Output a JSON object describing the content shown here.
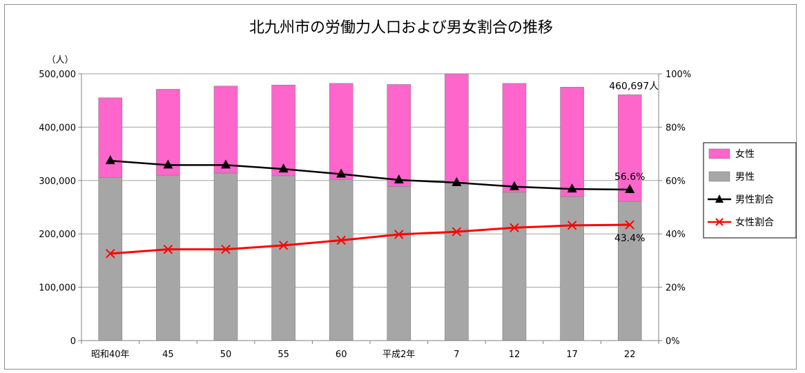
{
  "chart_data": {
    "type": "bar",
    "title": "北九州市の労働力人口および男女割合の推移",
    "y_unit_label": "（人）",
    "categories": [
      "昭和40年",
      "45",
      "50",
      "55",
      "60",
      "平成2年",
      "7",
      "12",
      "17",
      "22"
    ],
    "series": [
      {
        "name": "男性",
        "kind": "bar-stacked",
        "axis": "left",
        "color": "#a6a6a6",
        "values": [
          306000,
          310000,
          314000,
          309000,
          302000,
          289000,
          295000,
          278000,
          270000,
          261000
        ]
      },
      {
        "name": "女性",
        "kind": "bar-stacked",
        "axis": "left",
        "color": "#ff66cc",
        "values": [
          149000,
          161000,
          163000,
          170000,
          180000,
          191000,
          205000,
          204000,
          205000,
          199697
        ]
      },
      {
        "name": "男性割合",
        "kind": "line",
        "axis": "right",
        "color": "#000000",
        "marker": "triangle",
        "values": [
          67.4,
          65.8,
          65.8,
          64.3,
          62.4,
          60.2,
          59.2,
          57.7,
          56.8,
          56.6
        ]
      },
      {
        "name": "女性割合",
        "kind": "line",
        "axis": "right",
        "color": "#ff0000",
        "marker": "x",
        "values": [
          32.6,
          34.2,
          34.2,
          35.7,
          37.6,
          39.8,
          40.8,
          42.3,
          43.2,
          43.4
        ]
      }
    ],
    "left_axis": {
      "ylim": [
        0,
        500000
      ],
      "ticks": [
        0,
        100000,
        200000,
        300000,
        400000,
        500000
      ],
      "tick_labels": [
        "0",
        "100,000",
        "200,000",
        "300,000",
        "400,000",
        "500,000"
      ]
    },
    "right_axis": {
      "ylim": [
        0,
        100
      ],
      "ticks": [
        0,
        20,
        40,
        60,
        80,
        100
      ],
      "tick_labels": [
        "0%",
        "20%",
        "40%",
        "60%",
        "80%",
        "100%"
      ]
    },
    "legend": {
      "placement": "right",
      "order": [
        "女性",
        "男性",
        "男性割合",
        "女性割合"
      ]
    },
    "annotations": [
      {
        "text": "460,697人",
        "target": "total",
        "category": "22"
      },
      {
        "text": "56.6%",
        "target": "男性割合",
        "category": "22"
      },
      {
        "text": "43.4%",
        "target": "女性割合",
        "category": "22"
      }
    ],
    "grid": true,
    "colors": {
      "grid": "#a0a0a0",
      "axis": "#808080",
      "frame": "#8c8c8c"
    }
  }
}
